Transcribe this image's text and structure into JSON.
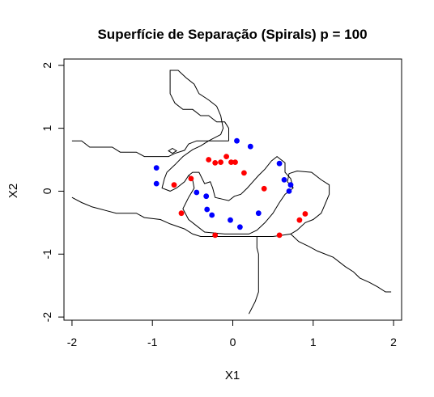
{
  "chart_data": {
    "type": "scatter",
    "title": "Superfície de Separação (Spirals) p = 100",
    "xlabel": "X1",
    "ylabel": "X2",
    "xlim": [
      -2.1,
      2.1
    ],
    "ylim": [
      -2.05,
      2.1
    ],
    "x_ticks": [
      -2,
      -1,
      0,
      1,
      2
    ],
    "y_ticks": [
      -2,
      -1,
      0,
      1,
      2
    ],
    "grid": false,
    "box": true,
    "series": [
      {
        "color": "#0000ff",
        "points": [
          [
            -0.95,
            0.37
          ],
          [
            -0.95,
            0.12
          ],
          [
            0.05,
            0.8
          ],
          [
            0.22,
            0.71
          ],
          [
            0.58,
            0.44
          ],
          [
            0.64,
            0.18
          ],
          [
            0.72,
            0.1
          ],
          [
            0.7,
            0.0
          ],
          [
            -0.45,
            -0.02
          ],
          [
            -0.33,
            -0.08
          ],
          [
            -0.32,
            -0.29
          ],
          [
            -0.26,
            -0.38
          ],
          [
            -0.03,
            -0.46
          ],
          [
            0.09,
            -0.57
          ],
          [
            0.32,
            -0.35
          ]
        ]
      },
      {
        "color": "#ff0000",
        "points": [
          [
            -0.73,
            0.1
          ],
          [
            -0.52,
            0.2
          ],
          [
            -0.3,
            0.5
          ],
          [
            -0.22,
            0.45
          ],
          [
            -0.15,
            0.46
          ],
          [
            -0.08,
            0.55
          ],
          [
            -0.02,
            0.46
          ],
          [
            0.03,
            0.46
          ],
          [
            0.14,
            0.29
          ],
          [
            0.39,
            0.04
          ],
          [
            -0.64,
            -0.35
          ],
          [
            -0.22,
            -0.7
          ],
          [
            0.58,
            -0.7
          ],
          [
            0.83,
            -0.46
          ],
          [
            0.9,
            -0.36
          ]
        ]
      }
    ],
    "boundary": [
      [
        [
          -2.0,
          0.8
        ],
        [
          -1.88,
          0.8
        ],
        [
          -1.78,
          0.7
        ],
        [
          -1.5,
          0.7
        ],
        [
          -1.4,
          0.62
        ],
        [
          -1.2,
          0.62
        ],
        [
          -1.1,
          0.55
        ],
        [
          -0.8,
          0.55
        ],
        [
          -0.72,
          0.6
        ],
        [
          -0.6,
          0.65
        ],
        [
          -0.55,
          0.75
        ],
        [
          -0.45,
          0.8
        ],
        [
          -0.05,
          0.8
        ]
      ],
      [
        [
          -0.05,
          0.8
        ],
        [
          -0.05,
          1.0
        ],
        [
          -0.1,
          1.1
        ],
        [
          -0.2,
          1.1
        ],
        [
          -0.3,
          1.2
        ],
        [
          -0.4,
          1.2
        ],
        [
          -0.5,
          1.3
        ],
        [
          -0.62,
          1.3
        ],
        [
          -0.72,
          1.4
        ],
        [
          -0.78,
          1.55
        ],
        [
          -0.78,
          1.92
        ],
        [
          -0.68,
          1.92
        ],
        [
          -0.58,
          1.8
        ],
        [
          -0.48,
          1.7
        ],
        [
          -0.42,
          1.55
        ],
        [
          -0.3,
          1.45
        ],
        [
          -0.2,
          1.35
        ],
        [
          -0.15,
          1.2
        ],
        [
          -0.12,
          1.0
        ],
        [
          -0.15,
          0.9
        ],
        [
          -0.3,
          0.8
        ],
        [
          -0.4,
          0.72
        ],
        [
          -0.5,
          0.66
        ],
        [
          -0.62,
          0.55
        ],
        [
          -0.72,
          0.42
        ],
        [
          -0.82,
          0.3
        ],
        [
          -0.85,
          0.2
        ],
        [
          -0.88,
          0.05
        ],
        [
          -0.78,
          0.0
        ],
        [
          -0.7,
          0.05
        ],
        [
          -0.6,
          0.15
        ],
        [
          -0.55,
          0.25
        ]
      ],
      [
        [
          -0.55,
          0.25
        ],
        [
          -0.5,
          0.3
        ],
        [
          -0.42,
          0.3
        ],
        [
          -0.35,
          0.12
        ],
        [
          -0.28,
          0.15
        ],
        [
          -0.25,
          0.05
        ],
        [
          -0.22,
          -0.1
        ],
        [
          -0.15,
          -0.12
        ],
        [
          -0.05,
          -0.15
        ],
        [
          0.02,
          -0.08
        ],
        [
          0.1,
          -0.05
        ],
        [
          0.18,
          0.05
        ],
        [
          0.25,
          0.15
        ],
        [
          0.32,
          0.25
        ],
        [
          0.4,
          0.35
        ],
        [
          0.48,
          0.48
        ],
        [
          0.55,
          0.55
        ],
        [
          0.65,
          0.45
        ],
        [
          0.65,
          0.3
        ],
        [
          0.72,
          0.2
        ],
        [
          0.75,
          0.05
        ],
        [
          0.65,
          -0.05
        ],
        [
          0.58,
          -0.18
        ],
        [
          0.5,
          -0.35
        ],
        [
          0.4,
          -0.5
        ],
        [
          0.3,
          -0.62
        ],
        [
          0.2,
          -0.68
        ],
        [
          -0.1,
          -0.68
        ],
        [
          -0.35,
          -0.65
        ],
        [
          -0.45,
          -0.55
        ],
        [
          -0.55,
          -0.45
        ],
        [
          -0.62,
          -0.28
        ],
        [
          -0.55,
          -0.1
        ],
        [
          -0.48,
          0.05
        ],
        [
          -0.5,
          0.18
        ],
        [
          -0.55,
          0.25
        ]
      ],
      [
        [
          -2.0,
          -0.1
        ],
        [
          -1.88,
          -0.18
        ],
        [
          -1.75,
          -0.25
        ],
        [
          -1.6,
          -0.3
        ],
        [
          -1.45,
          -0.35
        ],
        [
          -1.2,
          -0.35
        ],
        [
          -1.1,
          -0.42
        ],
        [
          -0.9,
          -0.45
        ],
        [
          -0.78,
          -0.52
        ],
        [
          -0.6,
          -0.6
        ],
        [
          -0.5,
          -0.68
        ],
        [
          -0.4,
          -0.72
        ],
        [
          -0.2,
          -0.72
        ],
        [
          0.1,
          -0.72
        ],
        [
          0.3,
          -0.72
        ],
        [
          0.5,
          -0.72
        ],
        [
          0.62,
          -0.7
        ],
        [
          0.72,
          -0.68
        ],
        [
          0.8,
          -0.62
        ],
        [
          0.9,
          -0.5
        ],
        [
          1.0,
          -0.45
        ],
        [
          1.1,
          -0.35
        ],
        [
          1.15,
          -0.2
        ],
        [
          1.2,
          -0.05
        ],
        [
          1.2,
          0.1
        ],
        [
          1.1,
          0.18
        ],
        [
          0.98,
          0.3
        ],
        [
          0.8,
          0.32
        ],
        [
          0.7,
          0.28
        ],
        [
          0.68,
          0.15
        ],
        [
          0.75,
          0.05
        ]
      ],
      [
        [
          0.3,
          -0.72
        ],
        [
          0.3,
          -0.9
        ],
        [
          0.32,
          -1.0
        ],
        [
          0.32,
          -1.3
        ],
        [
          0.32,
          -1.6
        ],
        [
          0.28,
          -1.75
        ],
        [
          0.2,
          -1.95
        ]
      ],
      [
        [
          0.72,
          -0.68
        ],
        [
          0.82,
          -0.8
        ],
        [
          0.95,
          -0.88
        ],
        [
          1.05,
          -0.95
        ],
        [
          1.25,
          -1.05
        ],
        [
          1.4,
          -1.2
        ],
        [
          1.5,
          -1.28
        ],
        [
          1.58,
          -1.38
        ],
        [
          1.7,
          -1.45
        ],
        [
          1.8,
          -1.52
        ],
        [
          1.9,
          -1.6
        ],
        [
          1.97,
          -1.6
        ]
      ]
    ]
  }
}
